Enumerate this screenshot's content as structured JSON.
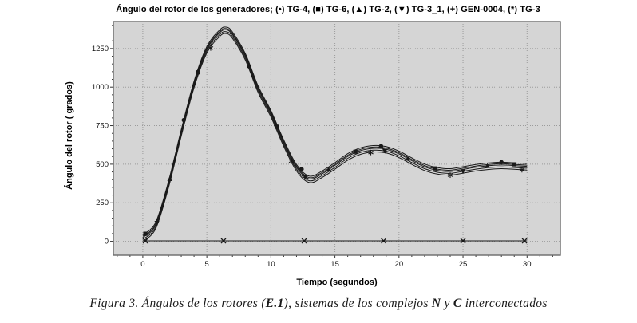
{
  "figure": {
    "caption": {
      "part1": "Figura 3. Ángulos de los rotores (",
      "bold1": "E.1",
      "part2": "), sistemas de los complejos ",
      "bold2": "N",
      "part3": " y ",
      "bold3": "C",
      "part4": " interconectados"
    }
  },
  "chart_data": {
    "type": "line",
    "title": "Ángulo del rotor de los generadores; (•) TG-4, (■) TG-6, (▲) TG-2, (▼) TG-3_1, (+) GEN-0004, (*) TG-3",
    "xlabel": "Tiempo (segundos)",
    "ylabel": "Ángulo del rotor ( grados)",
    "xlim": [
      0,
      30
    ],
    "ylim": [
      0,
      1390
    ],
    "xticks": [
      0,
      5,
      10,
      15,
      20,
      25,
      30
    ],
    "yticks": [
      0,
      250,
      500,
      750,
      1000,
      1250
    ],
    "grid": true,
    "legend_position": "in-title",
    "colors": {
      "line": "#1a1a1a",
      "plot_bg": "#d5d5d5",
      "grid": "#9b9b9b",
      "border": "#6a6a6a"
    },
    "x": [
      0,
      1,
      2,
      3,
      4,
      5,
      6,
      6.5,
      7,
      8,
      9,
      10,
      11,
      12,
      13,
      14,
      15,
      16,
      17,
      18,
      19,
      20,
      21,
      22,
      23,
      24,
      25,
      26,
      27,
      28,
      29,
      30
    ],
    "series": [
      {
        "name": "TG-4",
        "marker": "circle",
        "marker_x": [
          3.2,
          12.4,
          18.6,
          28.0
        ],
        "values": [
          43,
          123,
          388,
          723,
          1038,
          1263,
          1370,
          1389,
          1358,
          1218,
          1008,
          848,
          658,
          498,
          423,
          456,
          510,
          568,
          606,
          621,
          615,
          585,
          541,
          501,
          478,
          471,
          484,
          498,
          508,
          513,
          509,
          504
        ]
      },
      {
        "name": "TG-6",
        "marker": "square",
        "marker_x": [
          0.2,
          4.3,
          10.5,
          16.6,
          22.8,
          29.0
        ],
        "values": [
          33,
          113,
          378,
          713,
          1028,
          1253,
          1360,
          1379,
          1348,
          1208,
          998,
          838,
          648,
          488,
          413,
          446,
          500,
          558,
          596,
          611,
          605,
          575,
          531,
          491,
          468,
          461,
          474,
          488,
          498,
          503,
          499,
          494
        ]
      },
      {
        "name": "TG-2",
        "marker": "triangle-up",
        "marker_x": [
          2.1,
          8.3,
          14.5,
          20.7,
          26.9
        ],
        "values": [
          25,
          105,
          370,
          705,
          1020,
          1245,
          1352,
          1371,
          1340,
          1200,
          990,
          830,
          640,
          480,
          405,
          438,
          492,
          550,
          588,
          603,
          597,
          567,
          523,
          483,
          460,
          453,
          466,
          480,
          490,
          495,
          491,
          486
        ]
      },
      {
        "name": "TG-3_1",
        "marker": "triangle-down",
        "marker_x": [
          1.1,
          10.4,
          12.7,
          18.9,
          25.0
        ],
        "values": [
          13,
          93,
          358,
          693,
          1008,
          1233,
          1340,
          1359,
          1328,
          1188,
          978,
          818,
          628,
          468,
          393,
          426,
          480,
          538,
          576,
          591,
          585,
          555,
          511,
          471,
          448,
          441,
          454,
          468,
          478,
          483,
          479,
          474
        ]
      },
      {
        "name": "GEN-0004",
        "marker": "x",
        "marker_x": [
          0.2,
          6.3,
          12.6,
          18.8,
          25.0,
          29.8
        ],
        "values": [
          3,
          3,
          3,
          3,
          3,
          3,
          3,
          3,
          3,
          3,
          3,
          3,
          3,
          3,
          3,
          3,
          3,
          3,
          3,
          3,
          3,
          3,
          3,
          3,
          3,
          3,
          3,
          3,
          3,
          3,
          3,
          3
        ]
      },
      {
        "name": "TG-3",
        "marker": "star",
        "marker_x": [
          5.3,
          11.6,
          17.8,
          24.0,
          29.6
        ],
        "values": [
          1,
          81,
          346,
          681,
          996,
          1221,
          1328,
          1347,
          1316,
          1176,
          966,
          806,
          616,
          456,
          381,
          414,
          468,
          526,
          564,
          579,
          573,
          543,
          499,
          459,
          436,
          429,
          442,
          456,
          466,
          471,
          467,
          462
        ]
      }
    ]
  }
}
